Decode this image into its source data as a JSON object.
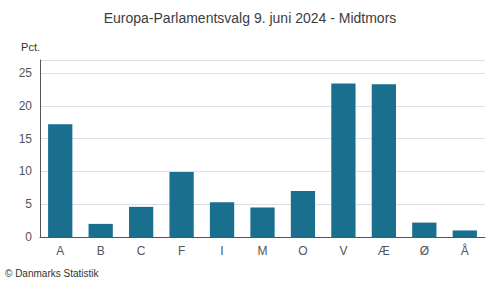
{
  "chart_data": {
    "type": "bar",
    "title": "Europa-Parlamentsvalg 9. juni 2024 - Midtmors",
    "ylabel": "Pct.",
    "annotations": [
      "© Danmarks Statistik"
    ],
    "categories": [
      "A",
      "B",
      "C",
      "F",
      "I",
      "M",
      "O",
      "V",
      "Æ",
      "Ø",
      "Å"
    ],
    "values": [
      17.2,
      2.0,
      4.6,
      9.9,
      5.3,
      4.5,
      7.0,
      23.4,
      23.3,
      2.2,
      1.0
    ],
    "color": "#1a6e8e",
    "ylim": [
      0,
      27
    ],
    "yticks": [
      0,
      5,
      10,
      15,
      20,
      25
    ],
    "grid": true
  }
}
